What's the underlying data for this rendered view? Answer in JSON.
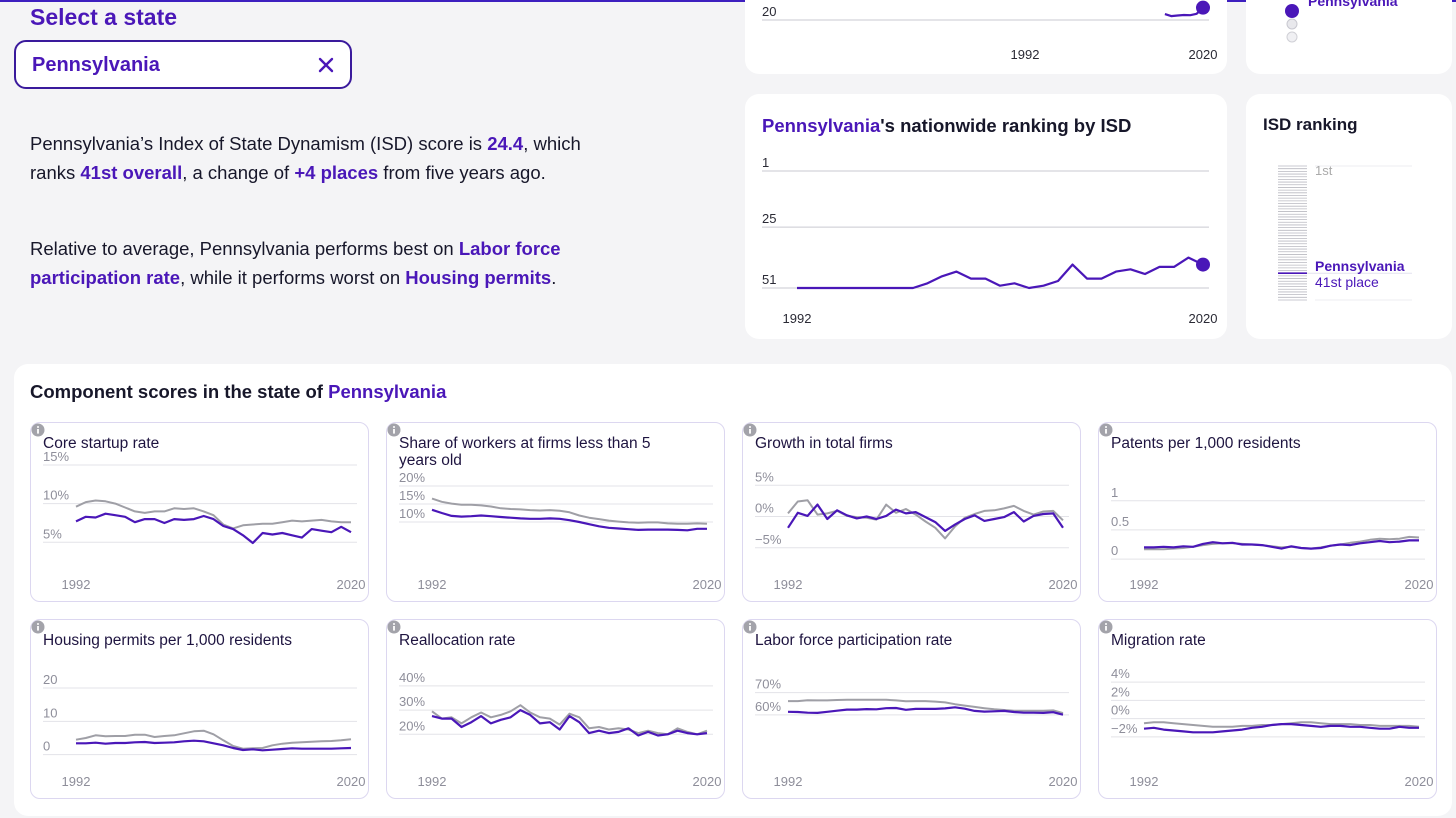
{
  "state": {
    "heading": "Select a state",
    "value": "Pennsylvania",
    "clear_icon": "close-icon"
  },
  "summary": {
    "p1_a": "Pennsylvania’s Index of State Dynamism (ISD) score is ",
    "p1_score": "24.4",
    "p1_b": ", which ranks ",
    "p1_rank": "41st overall",
    "p1_c": ", a change of ",
    "p1_change": "+4 places",
    "p1_d": " from five years ago.",
    "p2_a": "Relative to average, Pennsylvania performs best on ",
    "p2_best": "Labor force participation rate",
    "p2_b": ", while it performs worst on ",
    "p2_worst": "Housing permits",
    "p2_c": "."
  },
  "score_legend": {
    "state_label": "Pennsylvania"
  },
  "rank_card": {
    "title_state": "Pennsylvania",
    "title_rest": "'s nationwide ranking by ISD"
  },
  "isd_card": {
    "title": "ISD ranking",
    "first_label": "1st",
    "state_label": "Pennsylvania",
    "place_label": "41st place"
  },
  "components": {
    "title_prefix": "Component scores in the state of ",
    "title_state": "Pennsylvania"
  },
  "colors": {
    "state": "#4a17b8",
    "average": "#9f9fa6",
    "grid": "#e3e3e8"
  },
  "chart_data": [
    {
      "id": "score-top",
      "type": "line",
      "title": "",
      "x": [
        2014,
        2015,
        2016,
        2017,
        2018,
        2019,
        2020
      ],
      "ylim": [
        20,
        30
      ],
      "yticks": [
        20
      ],
      "xticks": [
        1992,
        2020
      ],
      "xlim": [
        1992,
        2020
      ],
      "series": [
        {
          "name": "Pennsylvania",
          "role": "state",
          "values": [
            22.1,
            21.4,
            21.6,
            21.8,
            21.7,
            22.2,
            24.4
          ]
        }
      ]
    },
    {
      "id": "rank",
      "type": "line",
      "title": "Pennsylvania's nationwide ranking by ISD",
      "x": [
        1992,
        1993,
        1994,
        1995,
        1996,
        1997,
        1998,
        1999,
        2000,
        2001,
        2002,
        2003,
        2004,
        2005,
        2006,
        2007,
        2008,
        2009,
        2010,
        2011,
        2012,
        2013,
        2014,
        2015,
        2016,
        2017,
        2018,
        2019,
        2020
      ],
      "ylim": [
        1,
        51
      ],
      "yticks": [
        1,
        25,
        51
      ],
      "reverse_y": true,
      "xticks": [
        1992,
        2020
      ],
      "xlim": [
        1992,
        2020
      ],
      "series": [
        {
          "name": "Pennsylvania",
          "role": "state",
          "values": [
            51,
            51,
            51,
            51,
            51,
            51,
            51,
            51,
            51,
            49,
            46,
            44,
            47,
            47,
            50,
            49,
            51,
            50,
            48,
            41,
            47,
            47,
            44,
            43,
            45,
            42,
            42,
            38,
            41
          ]
        }
      ]
    },
    {
      "id": "isd-ranking",
      "type": "bar",
      "title": "ISD ranking",
      "highlight_rank": 41,
      "total": 51
    },
    {
      "id": "core-startup",
      "type": "line",
      "title": "Core startup rate",
      "x": [
        1992,
        1993,
        1994,
        1995,
        1996,
        1997,
        1998,
        1999,
        2000,
        2001,
        2002,
        2003,
        2004,
        2005,
        2006,
        2007,
        2008,
        2009,
        2010,
        2011,
        2012,
        2013,
        2014,
        2015,
        2016,
        2017,
        2018,
        2019,
        2020
      ],
      "ylim": [
        4,
        15
      ],
      "yticks": [
        5,
        10,
        15
      ],
      "yfmt": "%",
      "xticks": [
        1992,
        2020
      ],
      "xlim": [
        1992,
        2020
      ],
      "series": [
        {
          "name": "Average",
          "role": "avg",
          "values": [
            9.6,
            10.2,
            10.4,
            10.3,
            10.0,
            9.5,
            9.0,
            8.8,
            9.0,
            9.0,
            9.4,
            9.3,
            9.4,
            9.0,
            8.5,
            7.3,
            6.8,
            7.2,
            7.3,
            7.4,
            7.4,
            7.6,
            7.8,
            7.7,
            7.8,
            7.9,
            7.7,
            7.6,
            7.6
          ]
        },
        {
          "name": "Pennsylvania",
          "role": "state",
          "values": [
            7.7,
            8.3,
            8.2,
            8.7,
            8.5,
            8.3,
            7.6,
            8.0,
            8.0,
            7.5,
            8.0,
            7.9,
            8.0,
            8.4,
            8.0,
            7.1,
            6.7,
            5.9,
            4.9,
            6.2,
            6.0,
            6.2,
            5.9,
            5.6,
            6.7,
            6.5,
            6.3,
            7.0,
            6.3
          ]
        }
      ]
    },
    {
      "id": "young-firm-share",
      "type": "line",
      "title": "Share of workers at firms less than 5 years old",
      "x": [
        1992,
        1993,
        1994,
        1995,
        1996,
        1997,
        1998,
        1999,
        2000,
        2001,
        2002,
        2003,
        2004,
        2005,
        2006,
        2007,
        2008,
        2009,
        2010,
        2011,
        2012,
        2013,
        2014,
        2015,
        2016,
        2017,
        2018,
        2019,
        2020
      ],
      "ylim": [
        5,
        20
      ],
      "yticks": [
        10,
        15,
        20
      ],
      "yfmt": "%",
      "xticks": [
        1992,
        2020
      ],
      "xlim": [
        1992,
        2020
      ],
      "series": [
        {
          "name": "Average",
          "role": "avg",
          "values": [
            16.5,
            15.6,
            15.1,
            14.8,
            14.8,
            14.6,
            14.3,
            13.8,
            13.6,
            13.5,
            13.3,
            13.2,
            13.3,
            13.1,
            12.7,
            11.8,
            11.2,
            10.8,
            10.4,
            10.1,
            9.9,
            9.8,
            9.9,
            9.9,
            9.6,
            9.5,
            9.5,
            9.6,
            9.5
          ]
        },
        {
          "name": "Pennsylvania",
          "role": "state",
          "values": [
            13.4,
            12.5,
            11.7,
            11.5,
            11.6,
            11.8,
            11.6,
            11.4,
            11.2,
            11.0,
            10.9,
            10.9,
            11.0,
            10.9,
            10.5,
            10.0,
            9.4,
            8.8,
            8.4,
            8.2,
            8.0,
            7.8,
            7.9,
            7.9,
            7.9,
            7.8,
            7.7,
            8.1,
            8.1
          ]
        }
      ]
    },
    {
      "id": "firm-growth",
      "type": "line",
      "title": "Growth in total firms",
      "x": [
        1992,
        1993,
        1994,
        1995,
        1996,
        1997,
        1998,
        1999,
        2000,
        2001,
        2002,
        2003,
        2004,
        2005,
        2006,
        2007,
        2008,
        2009,
        2010,
        2011,
        2012,
        2013,
        2014,
        2015,
        2016,
        2017,
        2018,
        2019,
        2020
      ],
      "ylim": [
        -6,
        6
      ],
      "yticks": [
        -5,
        0,
        5
      ],
      "yfmt": "%",
      "yminus": true,
      "xticks": [
        1992,
        2020
      ],
      "xlim": [
        1992,
        2020
      ],
      "series": [
        {
          "name": "Average",
          "role": "avg",
          "values": [
            0.5,
            2.4,
            2.6,
            0.3,
            0.5,
            0.9,
            0.1,
            -0.1,
            -0.2,
            -0.5,
            1.9,
            0.6,
            1.2,
            0.3,
            -0.8,
            -1.8,
            -3.5,
            -1.6,
            -0.2,
            0.4,
            0.9,
            1.0,
            1.3,
            1.7,
            0.9,
            0.3,
            0.8,
            0.9,
            -0.6
          ]
        },
        {
          "name": "Pennsylvania",
          "role": "state",
          "values": [
            -1.8,
            0.6,
            0.1,
            1.9,
            -0.4,
            1.0,
            0.2,
            -0.3,
            0.0,
            -0.4,
            0.1,
            1.1,
            0.5,
            0.7,
            -0.1,
            -0.9,
            -2.3,
            -1.3,
            -0.4,
            0.2,
            -0.7,
            -0.4,
            -0.1,
            0.7,
            -0.8,
            0.1,
            0.4,
            0.5,
            -1.8
          ]
        }
      ]
    },
    {
      "id": "patents",
      "type": "line",
      "title": "Patents per 1,000 residents",
      "x": [
        1992,
        1993,
        1994,
        1995,
        1996,
        1997,
        1998,
        1999,
        2000,
        2001,
        2002,
        2003,
        2004,
        2005,
        2006,
        2007,
        2008,
        2009,
        2010,
        2011,
        2012,
        2013,
        2014,
        2015,
        2016,
        2017,
        2018,
        2019,
        2020
      ],
      "ylim": [
        -0.05,
        1.15
      ],
      "yticks": [
        0,
        0.5,
        1
      ],
      "xticks": [
        1992,
        2020
      ],
      "xlim": [
        1992,
        2020
      ],
      "series": [
        {
          "name": "Average",
          "role": "avg",
          "values": [
            0.17,
            0.17,
            0.17,
            0.18,
            0.19,
            0.21,
            0.24,
            0.26,
            0.27,
            0.27,
            0.26,
            0.25,
            0.24,
            0.22,
            0.2,
            0.21,
            0.19,
            0.18,
            0.2,
            0.23,
            0.25,
            0.28,
            0.3,
            0.33,
            0.35,
            0.34,
            0.35,
            0.38,
            0.37
          ]
        },
        {
          "name": "Pennsylvania",
          "role": "state",
          "values": [
            0.2,
            0.2,
            0.21,
            0.2,
            0.22,
            0.21,
            0.26,
            0.29,
            0.27,
            0.28,
            0.25,
            0.25,
            0.24,
            0.21,
            0.18,
            0.22,
            0.19,
            0.18,
            0.19,
            0.23,
            0.25,
            0.24,
            0.27,
            0.29,
            0.31,
            0.29,
            0.3,
            0.32,
            0.32
          ]
        }
      ]
    },
    {
      "id": "housing-permits",
      "type": "line",
      "title": "Housing permits per 1,000 residents",
      "x": [
        1992,
        1993,
        1994,
        1995,
        1996,
        1997,
        1998,
        1999,
        2000,
        2001,
        2002,
        2003,
        2004,
        2005,
        2006,
        2007,
        2008,
        2009,
        2010,
        2011,
        2012,
        2013,
        2014,
        2015,
        2016,
        2017,
        2018,
        2019,
        2020
      ],
      "ylim": [
        -1,
        23
      ],
      "yticks": [
        0,
        10,
        20
      ],
      "xticks": [
        1992,
        2020
      ],
      "xlim": [
        1992,
        2020
      ],
      "series": [
        {
          "name": "Average",
          "role": "avg",
          "values": [
            4.5,
            5.0,
            5.8,
            5.5,
            5.6,
            5.6,
            6.0,
            6.0,
            5.3,
            5.6,
            5.8,
            6.4,
            7.0,
            7.2,
            6.1,
            4.3,
            2.6,
            1.8,
            1.9,
            2.0,
            2.8,
            3.3,
            3.6,
            3.7,
            3.9,
            4.0,
            4.1,
            4.3,
            4.6
          ]
        },
        {
          "name": "Pennsylvania",
          "role": "state",
          "values": [
            3.4,
            3.4,
            3.6,
            3.3,
            3.5,
            3.5,
            3.7,
            3.8,
            3.5,
            3.6,
            3.7,
            4.0,
            4.2,
            4.0,
            3.4,
            2.8,
            2.0,
            1.4,
            1.6,
            1.3,
            1.5,
            1.7,
            1.9,
            1.8,
            1.8,
            1.8,
            1.8,
            1.9,
            2.0
          ]
        }
      ]
    },
    {
      "id": "reallocation",
      "type": "line",
      "title": "Reallocation rate",
      "x": [
        1992,
        1993,
        1994,
        1995,
        1996,
        1997,
        1998,
        1999,
        2000,
        2001,
        2002,
        2003,
        2004,
        2005,
        2006,
        2007,
        2008,
        2009,
        2010,
        2011,
        2012,
        2013,
        2014,
        2015,
        2016,
        2017,
        2018,
        2019,
        2020
      ],
      "ylim": [
        16,
        42
      ],
      "yticks": [
        20,
        30,
        40
      ],
      "yfmt": "%",
      "xticks": [
        1992,
        2020
      ],
      "xlim": [
        1992,
        2020
      ],
      "series": [
        {
          "name": "Average",
          "role": "avg",
          "values": [
            29.5,
            26.5,
            27.0,
            24.5,
            27.0,
            29.0,
            27.0,
            28.0,
            29.5,
            32.0,
            29.0,
            27.0,
            26.5,
            24.0,
            28.5,
            27.0,
            22.5,
            23.0,
            22.0,
            22.5,
            22.0,
            20.5,
            21.5,
            20.5,
            20.0,
            22.5,
            21.0,
            20.0,
            21.5
          ]
        },
        {
          "name": "Pennsylvania",
          "role": "state",
          "values": [
            27.5,
            26.5,
            26.5,
            23.0,
            25.0,
            27.5,
            24.5,
            26.0,
            27.0,
            30.0,
            28.0,
            24.5,
            25.0,
            22.0,
            27.5,
            25.0,
            20.5,
            21.5,
            20.5,
            21.0,
            22.5,
            19.5,
            21.0,
            19.5,
            20.0,
            21.5,
            20.5,
            20.0,
            20.5
          ]
        }
      ]
    },
    {
      "id": "labor-force",
      "type": "line",
      "title": "Labor force participation rate",
      "x": [
        1992,
        1993,
        1994,
        1995,
        1996,
        1997,
        1998,
        1999,
        2000,
        2001,
        2002,
        2003,
        2004,
        2005,
        2006,
        2007,
        2008,
        2009,
        2010,
        2011,
        2012,
        2013,
        2014,
        2015,
        2016,
        2017,
        2018,
        2019,
        2020
      ],
      "ylim": [
        55,
        73
      ],
      "yticks": [
        60,
        70
      ],
      "yfmt": "%",
      "xticks": [
        1992,
        2020
      ],
      "xlim": [
        1992,
        2020
      ],
      "series": [
        {
          "name": "Average",
          "role": "avg",
          "values": [
            66.2,
            66.2,
            66.6,
            66.5,
            66.5,
            66.7,
            66.8,
            66.8,
            66.8,
            66.8,
            66.8,
            66.5,
            66.1,
            66.2,
            66.2,
            66.0,
            65.6,
            64.8,
            64.2,
            63.6,
            63.0,
            62.5,
            62.2,
            61.9,
            61.9,
            61.9,
            61.9,
            62.0,
            60.8
          ]
        },
        {
          "name": "Pennsylvania",
          "role": "state",
          "values": [
            61.4,
            61.3,
            61.0,
            60.9,
            61.4,
            61.9,
            62.4,
            62.4,
            62.6,
            62.5,
            63.0,
            63.1,
            62.3,
            62.7,
            62.7,
            62.7,
            62.9,
            63.4,
            62.8,
            61.8,
            61.5,
            61.6,
            61.8,
            61.3,
            61.0,
            61.0,
            60.9,
            61.2,
            60.1
          ]
        }
      ]
    },
    {
      "id": "migration",
      "type": "line",
      "title": "Migration rate",
      "x": [
        1992,
        1993,
        1994,
        1995,
        1996,
        1997,
        1998,
        1999,
        2000,
        2001,
        2002,
        2003,
        2004,
        2005,
        2006,
        2007,
        2008,
        2009,
        2010,
        2011,
        2012,
        2013,
        2014,
        2015,
        2016,
        2017,
        2018,
        2019,
        2020
      ],
      "ylim": [
        -3,
        5
      ],
      "yticks": [
        -2,
        0,
        2,
        4
      ],
      "yfmt": "%",
      "yminus": true,
      "xticks": [
        1992,
        2020
      ],
      "xlim": [
        1992,
        2020
      ],
      "series": [
        {
          "name": "Average",
          "role": "avg",
          "values": [
            -0.5,
            -0.4,
            -0.4,
            -0.5,
            -0.6,
            -0.7,
            -0.8,
            -0.9,
            -0.9,
            -0.9,
            -0.8,
            -0.8,
            -0.7,
            -0.7,
            -0.6,
            -0.5,
            -0.4,
            -0.4,
            -0.5,
            -0.6,
            -0.6,
            -0.6,
            -0.7,
            -0.7,
            -0.8,
            -0.8,
            -0.8,
            -0.8,
            -0.9
          ]
        },
        {
          "name": "Pennsylvania",
          "role": "state",
          "values": [
            -1.1,
            -1.0,
            -1.2,
            -1.3,
            -1.4,
            -1.5,
            -1.5,
            -1.5,
            -1.4,
            -1.3,
            -1.2,
            -1.0,
            -0.9,
            -0.7,
            -0.6,
            -0.6,
            -0.7,
            -0.8,
            -0.9,
            -0.8,
            -0.8,
            -0.9,
            -0.9,
            -1.0,
            -1.1,
            -1.1,
            -0.9,
            -1.0,
            -1.0
          ]
        }
      ]
    }
  ]
}
